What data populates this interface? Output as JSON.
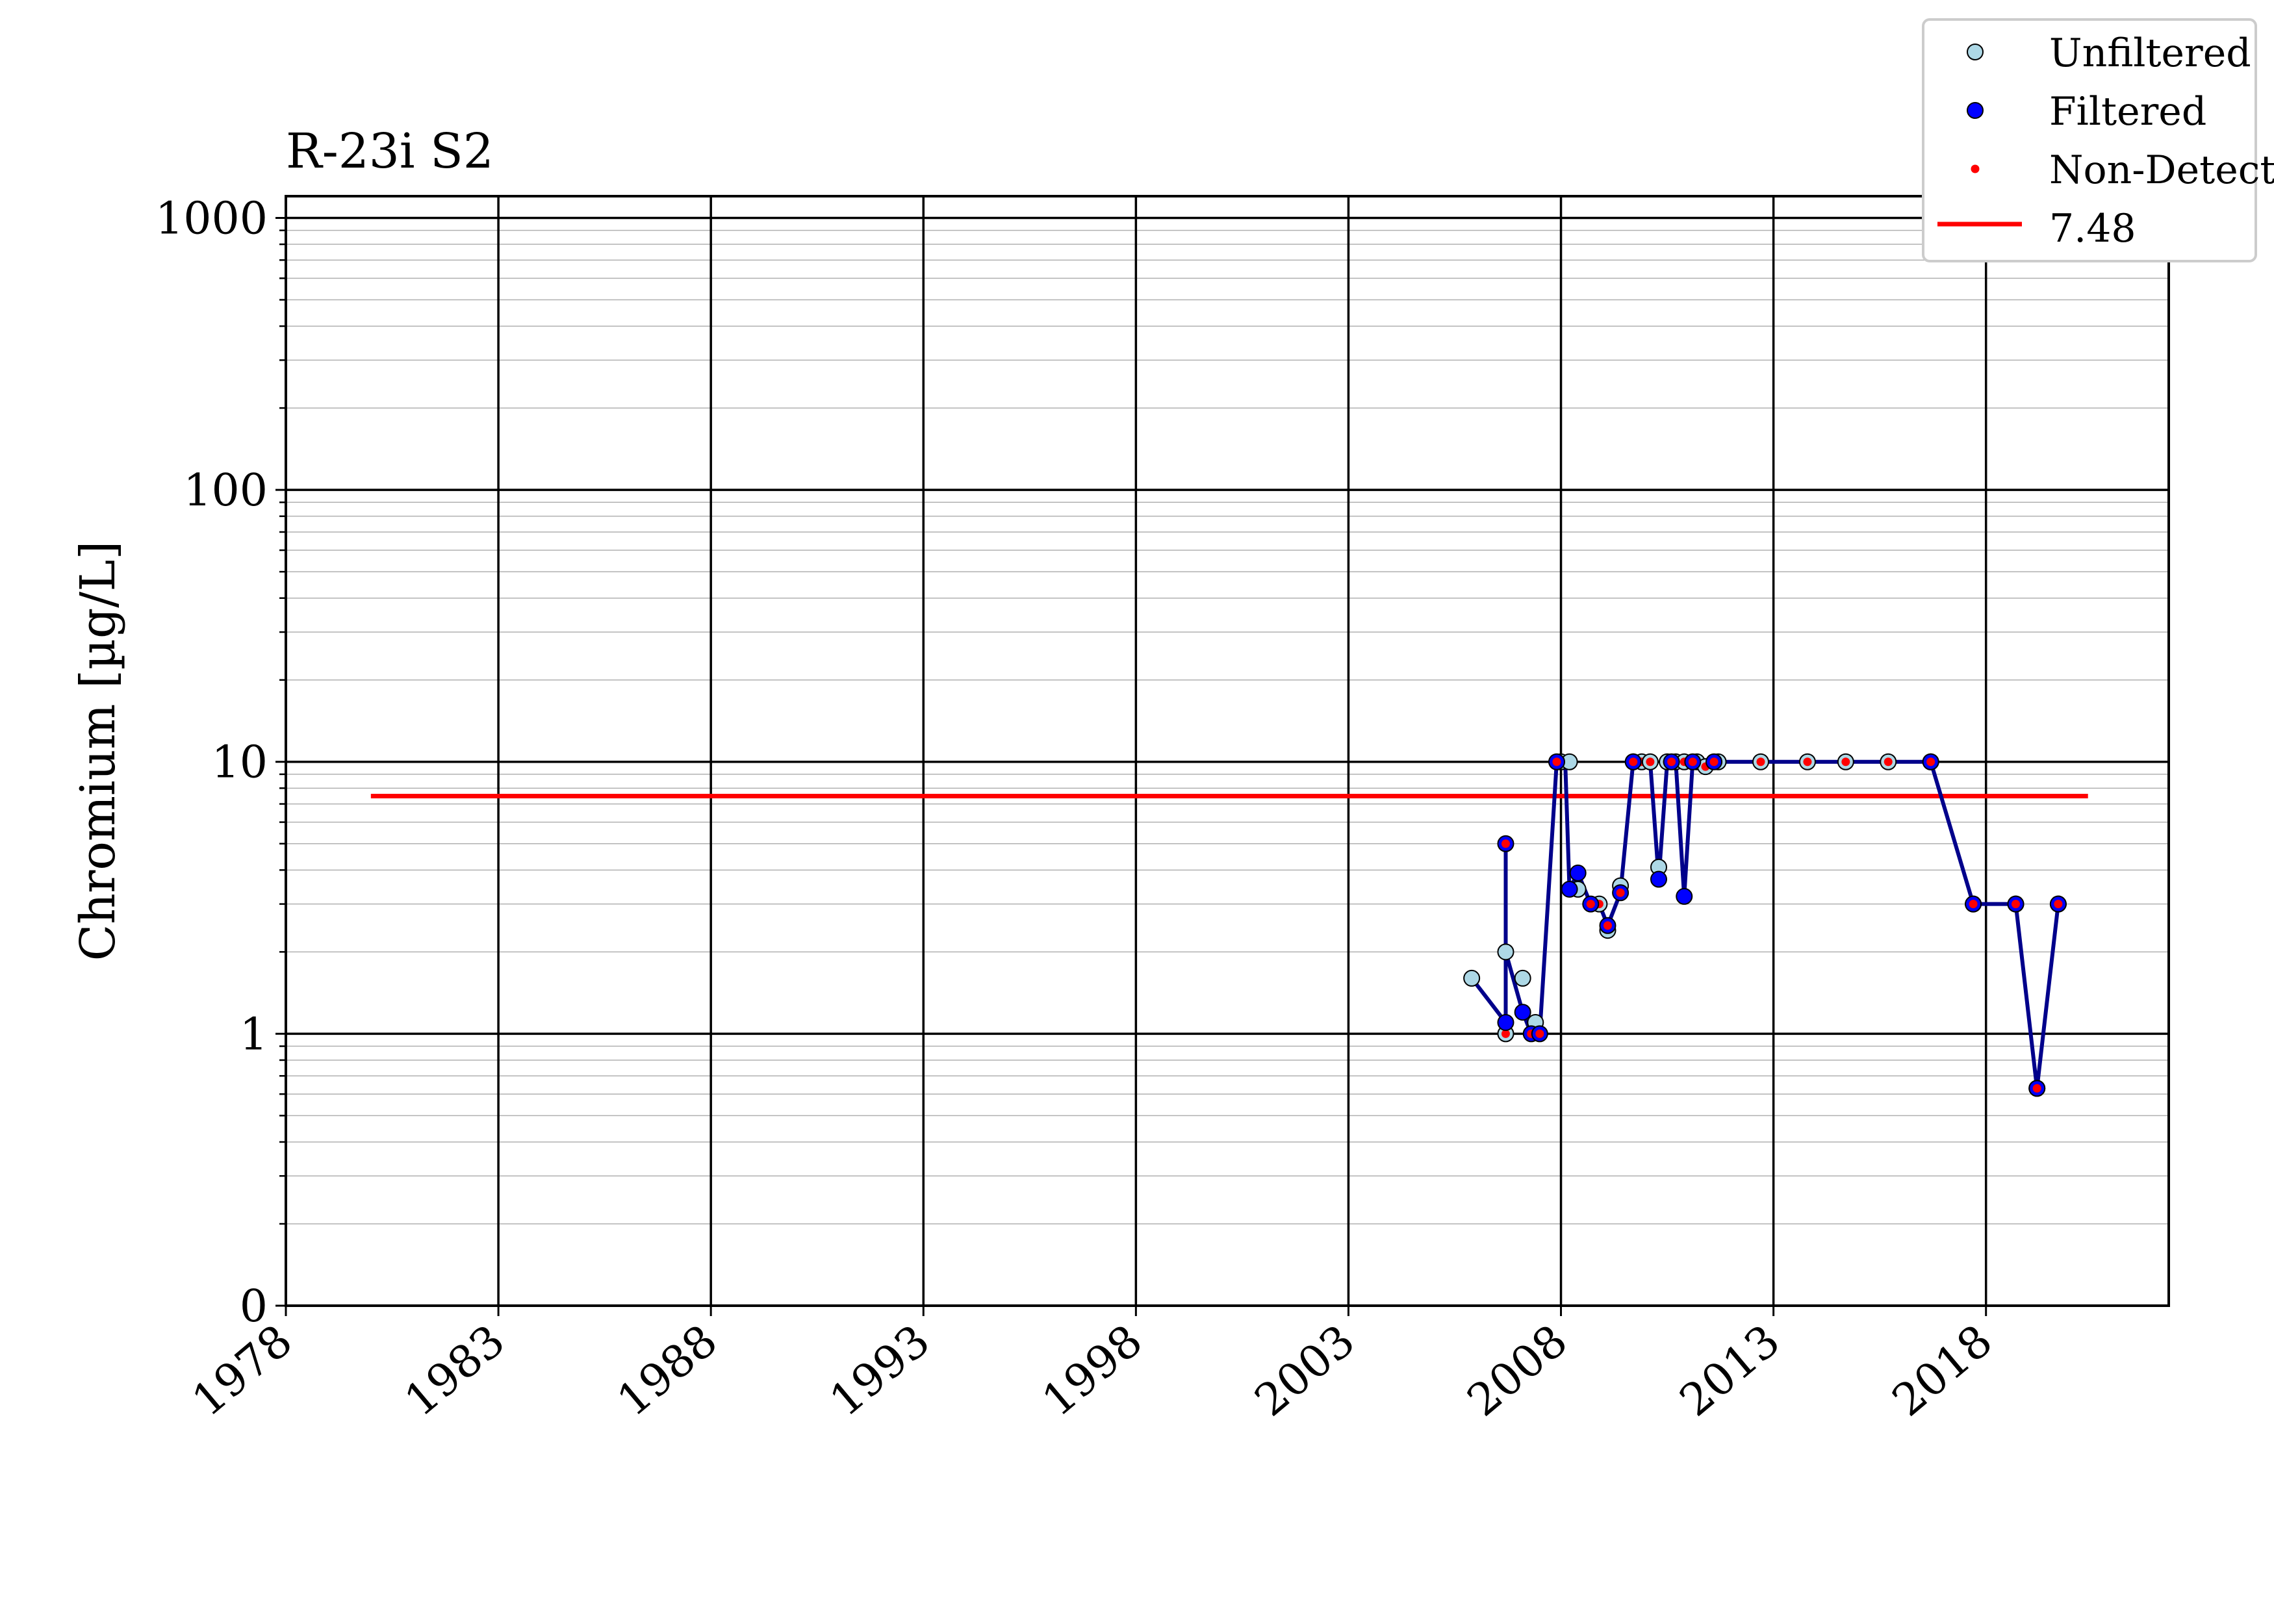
{
  "chart_data": {
    "type": "scatter",
    "title": "R-23i S2",
    "ylabel": "Chromium [µg/L]",
    "xlabel": "",
    "x_ticks": [
      "1978",
      "1983",
      "1988",
      "1993",
      "1998",
      "2003",
      "2008",
      "2013",
      "2018"
    ],
    "y_ticks": [
      "0",
      "1",
      "10",
      "100",
      "1000"
    ],
    "xlim": [
      1978,
      2022.3
    ],
    "ylim_log10": [
      -1,
      3.08
    ],
    "y_scale": "log",
    "grid": true,
    "legend": {
      "position": "top-right",
      "entries": [
        "Unfiltered",
        "Filtered",
        "Non-Detect",
        "7.48"
      ]
    },
    "threshold": {
      "name": "7.48",
      "value": 7.48,
      "x_start": 1980,
      "x_end": 2020.4,
      "color": "#ff0000"
    },
    "line_color": "#00008b",
    "series": [
      {
        "name": "Unfiltered",
        "color": "#add8e6",
        "points": [
          [
            2005.9,
            1.6,
            false
          ],
          [
            2006.7,
            2.0,
            false
          ],
          [
            2006.7,
            1.0,
            true
          ],
          [
            2007.1,
            1.6,
            false
          ],
          [
            2007.4,
            1.1,
            false
          ],
          [
            2008.0,
            10,
            true
          ],
          [
            2008.2,
            10,
            false
          ],
          [
            2008.4,
            3.4,
            false
          ],
          [
            2008.9,
            3.0,
            true
          ],
          [
            2009.1,
            2.4,
            false
          ],
          [
            2009.4,
            3.5,
            false
          ],
          [
            2009.7,
            10,
            true
          ],
          [
            2009.9,
            10,
            true
          ],
          [
            2010.1,
            10,
            true
          ],
          [
            2010.3,
            4.1,
            false
          ],
          [
            2010.5,
            10,
            true
          ],
          [
            2010.7,
            10,
            false
          ],
          [
            2010.9,
            10,
            true
          ],
          [
            2011.2,
            10,
            true
          ],
          [
            2011.4,
            9.6,
            true
          ],
          [
            2011.7,
            10,
            true
          ],
          [
            2012.7,
            10,
            true
          ],
          [
            2013.8,
            10,
            true
          ],
          [
            2014.7,
            10,
            true
          ],
          [
            2015.7,
            10,
            true
          ],
          [
            2016.7,
            10,
            true
          ],
          [
            2017.7,
            3.0,
            true
          ],
          [
            2018.7,
            3.0,
            true
          ],
          [
            2019.2,
            0.63,
            true
          ],
          [
            2019.7,
            3.0,
            true
          ]
        ]
      },
      {
        "name": "Filtered",
        "color": "#0000ff",
        "points": [
          [
            2006.7,
            5.0,
            true
          ],
          [
            2006.7,
            1.1,
            false
          ],
          [
            2007.1,
            1.2,
            false
          ],
          [
            2007.3,
            1.0,
            true
          ],
          [
            2007.5,
            1.0,
            true
          ],
          [
            2007.9,
            10,
            true
          ],
          [
            2008.2,
            3.4,
            false
          ],
          [
            2008.4,
            3.9,
            false
          ],
          [
            2008.7,
            3.0,
            true
          ],
          [
            2009.1,
            2.5,
            true
          ],
          [
            2009.4,
            3.3,
            true
          ],
          [
            2009.7,
            10,
            true
          ],
          [
            2010.3,
            3.7,
            false
          ],
          [
            2010.6,
            10,
            true
          ],
          [
            2010.9,
            3.2,
            false
          ],
          [
            2011.1,
            10,
            true
          ],
          [
            2011.6,
            10,
            true
          ],
          [
            2016.7,
            10,
            true
          ],
          [
            2017.7,
            3.0,
            true
          ],
          [
            2018.7,
            3.0,
            true
          ],
          [
            2019.2,
            0.63,
            true
          ],
          [
            2019.7,
            3.0,
            true
          ]
        ]
      }
    ],
    "line_path": [
      [
        2005.9,
        1.6
      ],
      [
        2006.7,
        1.1
      ],
      [
        2006.7,
        5.0
      ],
      [
        2006.7,
        2.0
      ],
      [
        2007.1,
        1.2
      ],
      [
        2007.3,
        1.0
      ],
      [
        2007.5,
        1.0
      ],
      [
        2007.9,
        10
      ],
      [
        2008.1,
        10
      ],
      [
        2008.2,
        3.4
      ],
      [
        2008.4,
        3.9
      ],
      [
        2008.7,
        3.0
      ],
      [
        2008.9,
        3.0
      ],
      [
        2009.1,
        2.5
      ],
      [
        2009.4,
        3.3
      ],
      [
        2009.7,
        10
      ],
      [
        2009.9,
        10
      ],
      [
        2010.1,
        10
      ],
      [
        2010.3,
        3.7
      ],
      [
        2010.5,
        10
      ],
      [
        2010.7,
        10
      ],
      [
        2010.9,
        3.2
      ],
      [
        2011.1,
        10
      ],
      [
        2011.4,
        10
      ],
      [
        2011.7,
        10
      ],
      [
        2012.7,
        10
      ],
      [
        2013.8,
        10
      ],
      [
        2014.7,
        10
      ],
      [
        2015.7,
        10
      ],
      [
        2016.7,
        10
      ],
      [
        2017.7,
        3.0
      ],
      [
        2018.7,
        3.0
      ],
      [
        2019.2,
        0.63
      ],
      [
        2019.7,
        3.0
      ]
    ]
  }
}
